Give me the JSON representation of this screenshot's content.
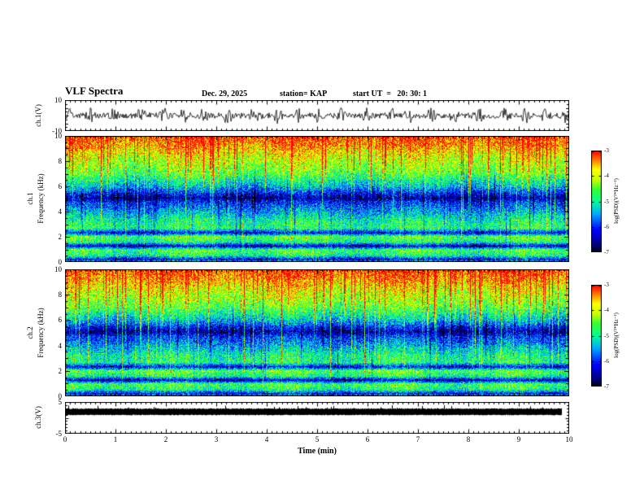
{
  "header": {
    "title": "VLF Spectra",
    "date": "Dec. 29, 2025",
    "station": "station= KAP",
    "start_ut": "start UT  =   20: 30: 1"
  },
  "chart_data": {
    "type": "multi-panel: line + spectrogram heatmaps",
    "title": "VLF Spectra",
    "subtitle": "Dec. 29, 2025  station= KAP  start UT = 20:30:1",
    "x_axis": {
      "label": "Time (min)",
      "min": 0,
      "max": 10,
      "tick_labels": [
        "0",
        "1",
        "2",
        "3",
        "4",
        "5",
        "6",
        "7",
        "8",
        "9",
        "10"
      ]
    },
    "panels": {
      "ch1": {
        "name": "ch.1(V)",
        "type": "line",
        "ylim": [
          -10,
          10
        ],
        "ytick_values": [
          10,
          -10
        ],
        "ytick_labels": [
          "10",
          "-10"
        ],
        "signal": {
          "mean": 0,
          "base_amplitude": 1.6,
          "burst_amplitude": 3.4,
          "burst_period_min": 0.45
        }
      },
      "spec1": {
        "name": "ch.1",
        "ylabel": "Frequency (kHz)",
        "type": "spectrogram",
        "ylim": [
          0,
          10
        ],
        "ytick_values": [
          0,
          2,
          4,
          6,
          8,
          10
        ],
        "ytick_labels": [
          "0",
          "2",
          "4",
          "6",
          "8",
          "10"
        ]
      },
      "spec2": {
        "name": "ch.2",
        "ylabel": "Frequency (kHz)",
        "type": "spectrogram",
        "ylim": [
          0,
          10
        ],
        "ytick_values": [
          0,
          2,
          4,
          6,
          8,
          10
        ],
        "ytick_labels": [
          "0",
          "2",
          "4",
          "6",
          "8",
          "10"
        ]
      },
      "ch3": {
        "name": "ch.3(V)",
        "type": "line",
        "ylim": [
          -5,
          5
        ],
        "ytick_values": [
          5,
          -5
        ],
        "ytick_labels": [
          "5",
          "-5"
        ],
        "bar_value_range": [
          0.9,
          2.9
        ]
      }
    },
    "spectrogram_profile_kHz_logPSD": [
      [
        0.0,
        -5.0
      ],
      [
        0.25,
        -6.2
      ],
      [
        0.55,
        -4.9
      ],
      [
        1.0,
        -4.6
      ],
      [
        1.3,
        -6.5
      ],
      [
        1.6,
        -4.9
      ],
      [
        2.05,
        -4.5
      ],
      [
        2.35,
        -6.3
      ],
      [
        2.7,
        -4.8
      ],
      [
        3.2,
        -4.9
      ],
      [
        3.8,
        -5.3
      ],
      [
        4.3,
        -5.7
      ],
      [
        4.75,
        -6.0
      ],
      [
        5.1,
        -6.6
      ],
      [
        5.5,
        -6.1
      ],
      [
        6.0,
        -5.4
      ],
      [
        6.5,
        -5.0
      ],
      [
        7.0,
        -4.6
      ],
      [
        7.6,
        -4.3
      ],
      [
        8.2,
        -4.1
      ],
      [
        8.8,
        -3.8
      ],
      [
        9.3,
        -3.5
      ],
      [
        10.0,
        -3.2
      ]
    ],
    "colorbar": {
      "label": "log(PSD)(V²*Hz⁻¹)",
      "vmin": -7,
      "vmax": -3,
      "tick_labels": [
        "-3",
        "-4",
        "-5",
        "-6",
        "-7"
      ]
    },
    "colormap_stops": [
      [
        0.0,
        "#000008"
      ],
      [
        0.08,
        "#000080"
      ],
      [
        0.22,
        "#0000ff"
      ],
      [
        0.38,
        "#00aaff"
      ],
      [
        0.5,
        "#00ff99"
      ],
      [
        0.62,
        "#33ff33"
      ],
      [
        0.72,
        "#ccff00"
      ],
      [
        0.82,
        "#ffff00"
      ],
      [
        0.9,
        "#ff8800"
      ],
      [
        1.0,
        "#ff0000"
      ]
    ],
    "line_color": "#000000",
    "background_color": "#ffffff",
    "generation": {
      "seed": 20251229,
      "pixel_noise": 0.7,
      "streak_probability": 0.13
    }
  }
}
